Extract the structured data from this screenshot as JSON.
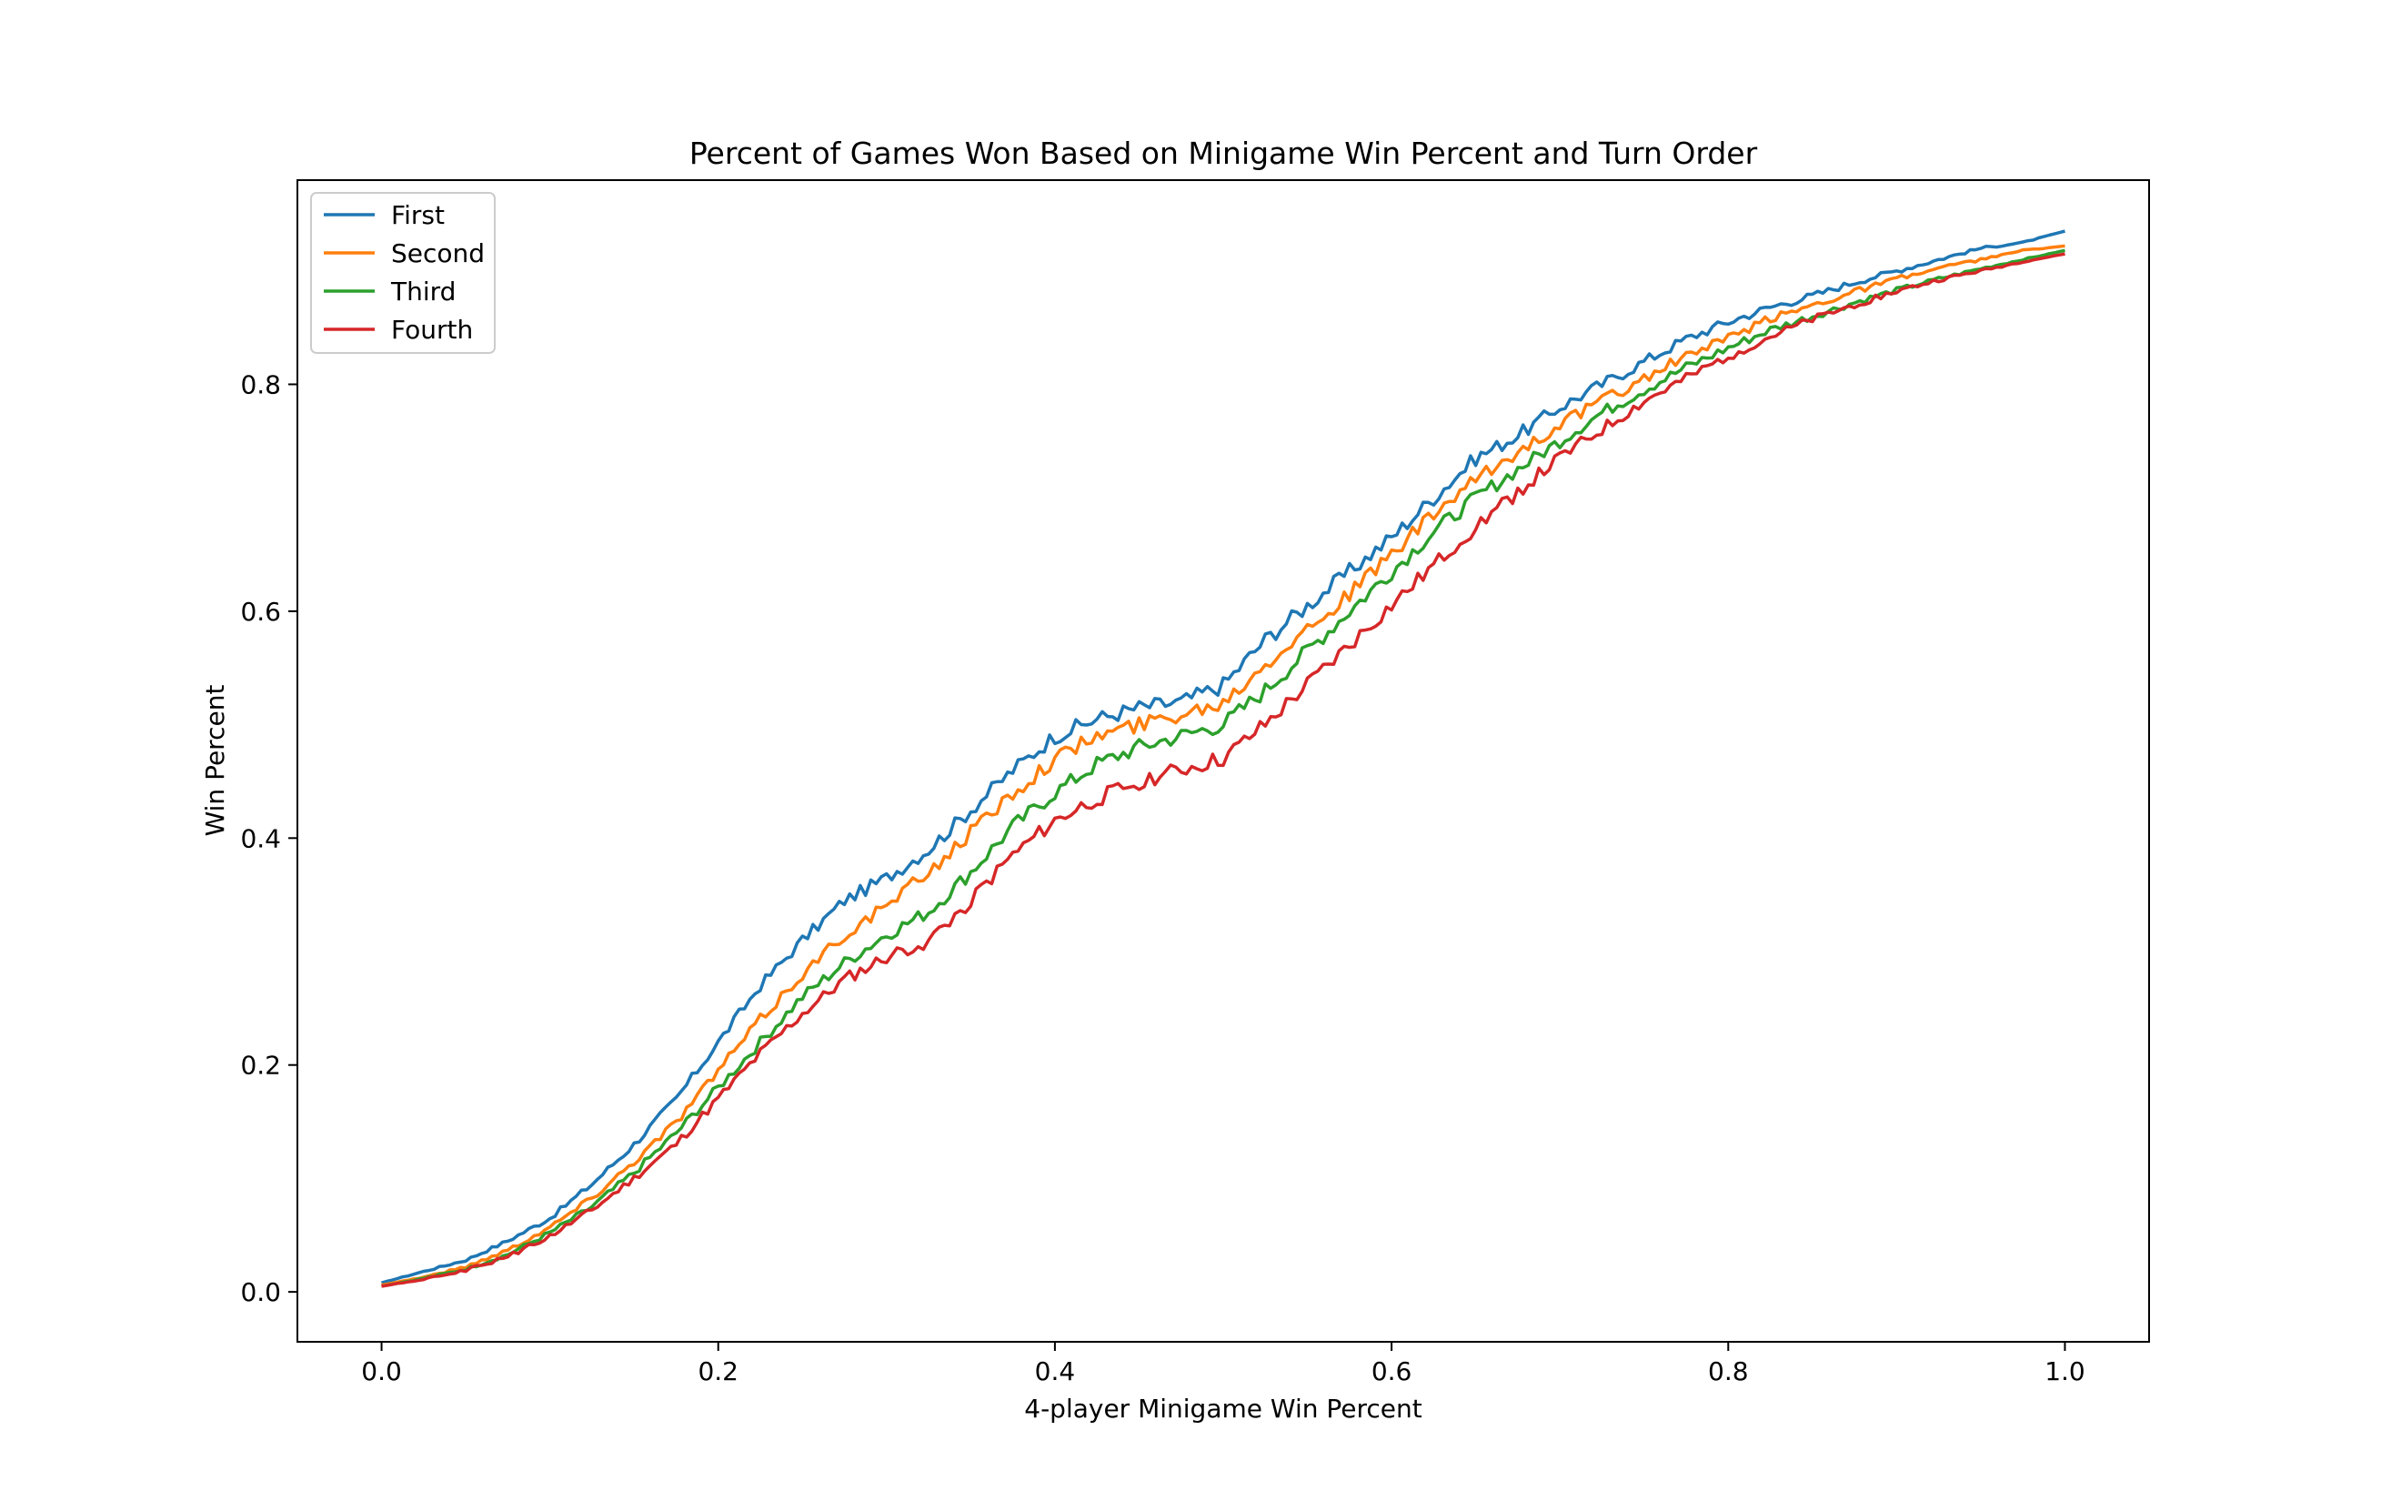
{
  "chart_data": {
    "type": "line",
    "title": "Percent of Games Won Based on Minigame Win Percent and Turn Order",
    "xlabel": "4-player Minigame Win Percent",
    "ylabel": "Win Percent",
    "xlim": [
      -0.05,
      1.05
    ],
    "ylim": [
      -0.044,
      0.98
    ],
    "xticks": [
      0.0,
      0.2,
      0.4,
      0.6,
      0.8,
      1.0
    ],
    "xtick_labels": [
      "0.0",
      "0.2",
      "0.4",
      "0.6",
      "0.8",
      "1.0"
    ],
    "yticks": [
      0.0,
      0.2,
      0.4,
      0.6,
      0.8
    ],
    "ytick_labels": [
      "0.0",
      "0.2",
      "0.4",
      "0.6",
      "0.8"
    ],
    "grid": false,
    "legend_position": "top-left",
    "x": [
      0.0,
      0.025,
      0.05,
      0.075,
      0.1,
      0.125,
      0.15,
      0.175,
      0.2,
      0.225,
      0.25,
      0.275,
      0.3,
      0.325,
      0.35,
      0.375,
      0.4,
      0.425,
      0.45,
      0.475,
      0.5,
      0.525,
      0.55,
      0.575,
      0.6,
      0.625,
      0.65,
      0.675,
      0.7,
      0.725,
      0.75,
      0.775,
      0.8,
      0.825,
      0.85,
      0.875,
      0.9,
      0.925,
      0.95,
      0.975,
      1.0
    ],
    "series": [
      {
        "name": "First",
        "color": "#1f77b4",
        "values": [
          0.008,
          0.018,
          0.028,
          0.045,
          0.065,
          0.095,
          0.13,
          0.17,
          0.22,
          0.27,
          0.31,
          0.345,
          0.365,
          0.39,
          0.425,
          0.46,
          0.49,
          0.505,
          0.515,
          0.52,
          0.535,
          0.575,
          0.605,
          0.635,
          0.665,
          0.7,
          0.735,
          0.755,
          0.78,
          0.8,
          0.82,
          0.84,
          0.855,
          0.868,
          0.878,
          0.89,
          0.9,
          0.91,
          0.92,
          0.925,
          0.935
        ]
      },
      {
        "name": "Second",
        "color": "#ff7f0e",
        "values": [
          0.006,
          0.013,
          0.022,
          0.037,
          0.057,
          0.083,
          0.115,
          0.15,
          0.195,
          0.24,
          0.28,
          0.315,
          0.34,
          0.37,
          0.405,
          0.44,
          0.47,
          0.49,
          0.5,
          0.51,
          0.52,
          0.555,
          0.585,
          0.615,
          0.65,
          0.685,
          0.715,
          0.74,
          0.765,
          0.785,
          0.805,
          0.825,
          0.84,
          0.858,
          0.87,
          0.882,
          0.893,
          0.902,
          0.91,
          0.918,
          0.922
        ]
      },
      {
        "name": "Third",
        "color": "#2ca02c",
        "values": [
          0.005,
          0.012,
          0.02,
          0.033,
          0.052,
          0.075,
          0.105,
          0.14,
          0.18,
          0.22,
          0.26,
          0.29,
          0.315,
          0.335,
          0.37,
          0.41,
          0.44,
          0.465,
          0.48,
          0.49,
          0.5,
          0.53,
          0.565,
          0.6,
          0.635,
          0.67,
          0.7,
          0.725,
          0.75,
          0.775,
          0.795,
          0.815,
          0.832,
          0.848,
          0.86,
          0.872,
          0.883,
          0.893,
          0.902,
          0.91,
          0.918
        ]
      },
      {
        "name": "Fourth",
        "color": "#d62728",
        "values": [
          0.005,
          0.011,
          0.019,
          0.031,
          0.049,
          0.072,
          0.1,
          0.13,
          0.17,
          0.21,
          0.245,
          0.275,
          0.295,
          0.31,
          0.345,
          0.385,
          0.415,
          0.435,
          0.45,
          0.46,
          0.47,
          0.5,
          0.535,
          0.57,
          0.605,
          0.64,
          0.675,
          0.705,
          0.735,
          0.76,
          0.785,
          0.805,
          0.825,
          0.842,
          0.857,
          0.87,
          0.882,
          0.892,
          0.9,
          0.908,
          0.915
        ]
      }
    ]
  }
}
